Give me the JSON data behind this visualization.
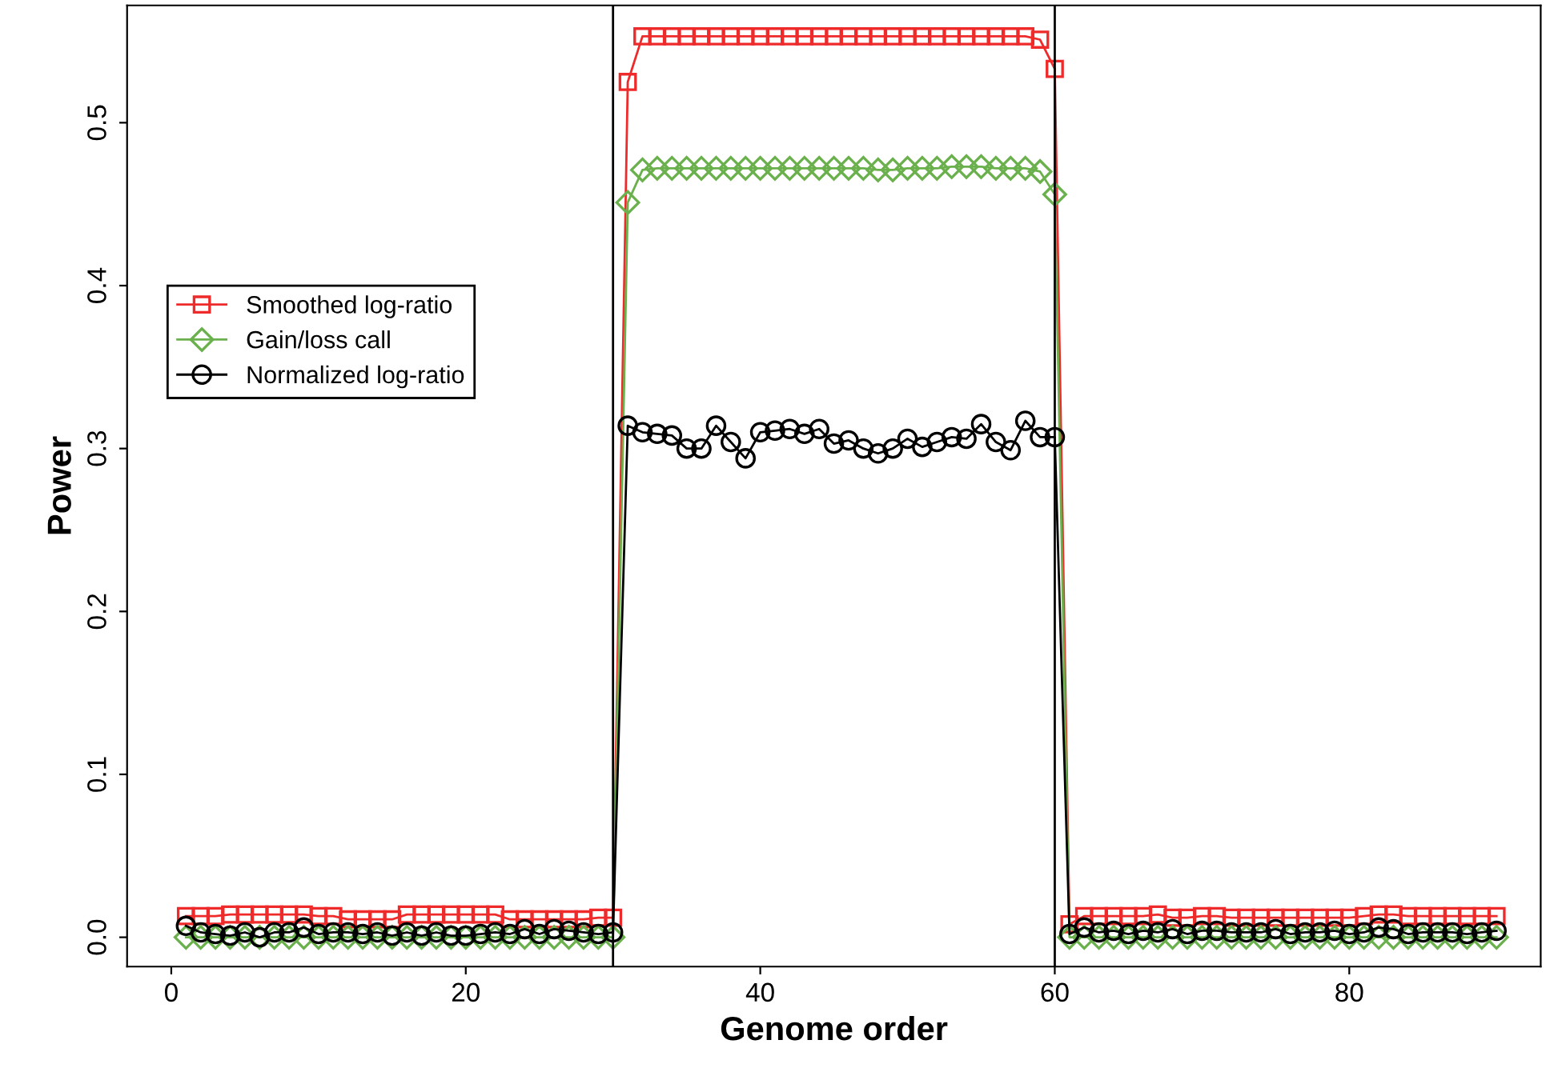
{
  "chart_data": {
    "type": "line",
    "xlabel": "Genome order",
    "ylabel": "Power",
    "x": [
      1,
      2,
      3,
      4,
      5,
      6,
      7,
      8,
      9,
      10,
      11,
      12,
      13,
      14,
      15,
      16,
      17,
      18,
      19,
      20,
      21,
      22,
      23,
      24,
      25,
      26,
      27,
      28,
      29,
      30,
      31,
      32,
      33,
      34,
      35,
      36,
      37,
      38,
      39,
      40,
      41,
      42,
      43,
      44,
      45,
      46,
      47,
      48,
      49,
      50,
      51,
      52,
      53,
      54,
      55,
      56,
      57,
      58,
      59,
      60,
      61,
      62,
      63,
      64,
      65,
      66,
      67,
      68,
      69,
      70,
      71,
      72,
      73,
      74,
      75,
      76,
      77,
      78,
      79,
      80,
      81,
      82,
      83,
      84,
      85,
      86,
      87,
      88,
      89,
      90
    ],
    "series": [
      {
        "name": "Smoothed log-ratio",
        "color": "#ee2a2a",
        "marker": "square",
        "values": [
          0.013,
          0.013,
          0.013,
          0.014,
          0.014,
          0.014,
          0.014,
          0.014,
          0.014,
          0.013,
          0.013,
          0.011,
          0.011,
          0.011,
          0.011,
          0.014,
          0.014,
          0.014,
          0.014,
          0.014,
          0.014,
          0.014,
          0.011,
          0.011,
          0.011,
          0.011,
          0.011,
          0.011,
          0.012,
          0.012,
          0.525,
          0.553,
          0.553,
          0.553,
          0.553,
          0.553,
          0.553,
          0.553,
          0.553,
          0.553,
          0.553,
          0.553,
          0.553,
          0.553,
          0.553,
          0.553,
          0.553,
          0.553,
          0.553,
          0.553,
          0.553,
          0.553,
          0.553,
          0.553,
          0.553,
          0.553,
          0.553,
          0.553,
          0.551,
          0.533,
          0.008,
          0.013,
          0.013,
          0.013,
          0.013,
          0.013,
          0.014,
          0.012,
          0.012,
          0.013,
          0.013,
          0.012,
          0.012,
          0.012,
          0.012,
          0.012,
          0.012,
          0.012,
          0.012,
          0.012,
          0.013,
          0.014,
          0.014,
          0.013,
          0.013,
          0.013,
          0.013,
          0.013,
          0.013,
          0.013
        ]
      },
      {
        "name": "Gain/loss call",
        "color": "#6ab04c",
        "marker": "diamond",
        "values": [
          0,
          0,
          0,
          0,
          0,
          0,
          0,
          0,
          0,
          0,
          0,
          0,
          0,
          0,
          0,
          0,
          0,
          0,
          0,
          0,
          0,
          0,
          0,
          0,
          0,
          0,
          0,
          0,
          0,
          0,
          0.451,
          0.471,
          0.472,
          0.472,
          0.472,
          0.472,
          0.472,
          0.472,
          0.472,
          0.472,
          0.472,
          0.472,
          0.472,
          0.472,
          0.472,
          0.472,
          0.472,
          0.471,
          0.471,
          0.472,
          0.472,
          0.472,
          0.473,
          0.473,
          0.473,
          0.472,
          0.472,
          0.472,
          0.47,
          0.456,
          0,
          0,
          0,
          0,
          0,
          0,
          0,
          0,
          0,
          0,
          0,
          0,
          0,
          0,
          0,
          0,
          0,
          0,
          0,
          0,
          0,
          0,
          0,
          0,
          0,
          0,
          0,
          0,
          0,
          0
        ]
      },
      {
        "name": "Normalized log-ratio",
        "color": "#000000",
        "marker": "circle",
        "values": [
          0.007,
          0.003,
          0.002,
          0.001,
          0.003,
          0.0,
          0.003,
          0.003,
          0.006,
          0.002,
          0.003,
          0.003,
          0.002,
          0.003,
          0.001,
          0.003,
          0.001,
          0.003,
          0.001,
          0.001,
          0.002,
          0.003,
          0.002,
          0.005,
          0.002,
          0.005,
          0.004,
          0.003,
          0.002,
          0.003,
          0.314,
          0.31,
          0.309,
          0.308,
          0.3,
          0.3,
          0.314,
          0.304,
          0.294,
          0.31,
          0.311,
          0.312,
          0.309,
          0.312,
          0.303,
          0.305,
          0.3,
          0.297,
          0.3,
          0.306,
          0.301,
          0.304,
          0.307,
          0.306,
          0.315,
          0.304,
          0.299,
          0.317,
          0.307,
          0.307,
          0.002,
          0.006,
          0.003,
          0.004,
          0.002,
          0.004,
          0.003,
          0.005,
          0.002,
          0.004,
          0.004,
          0.003,
          0.003,
          0.003,
          0.005,
          0.002,
          0.003,
          0.003,
          0.004,
          0.002,
          0.003,
          0.006,
          0.005,
          0.002,
          0.003,
          0.003,
          0.003,
          0.002,
          0.003,
          0.004
        ]
      }
    ],
    "xlim": [
      -3,
      93
    ],
    "xticks": [
      0,
      20,
      40,
      60,
      80
    ],
    "ylim": [
      -0.018,
      0.572
    ],
    "yticks": [
      {
        "value": 0,
        "label": "0.0"
      },
      0.1,
      0.2,
      0.3,
      0.4,
      0.5
    ],
    "ref_lines": [
      {
        "axis": "x",
        "value": 30,
        "color": "#000000"
      },
      {
        "axis": "x",
        "value": 60,
        "color": "#000000"
      }
    ],
    "grid": false,
    "legend": "left"
  }
}
